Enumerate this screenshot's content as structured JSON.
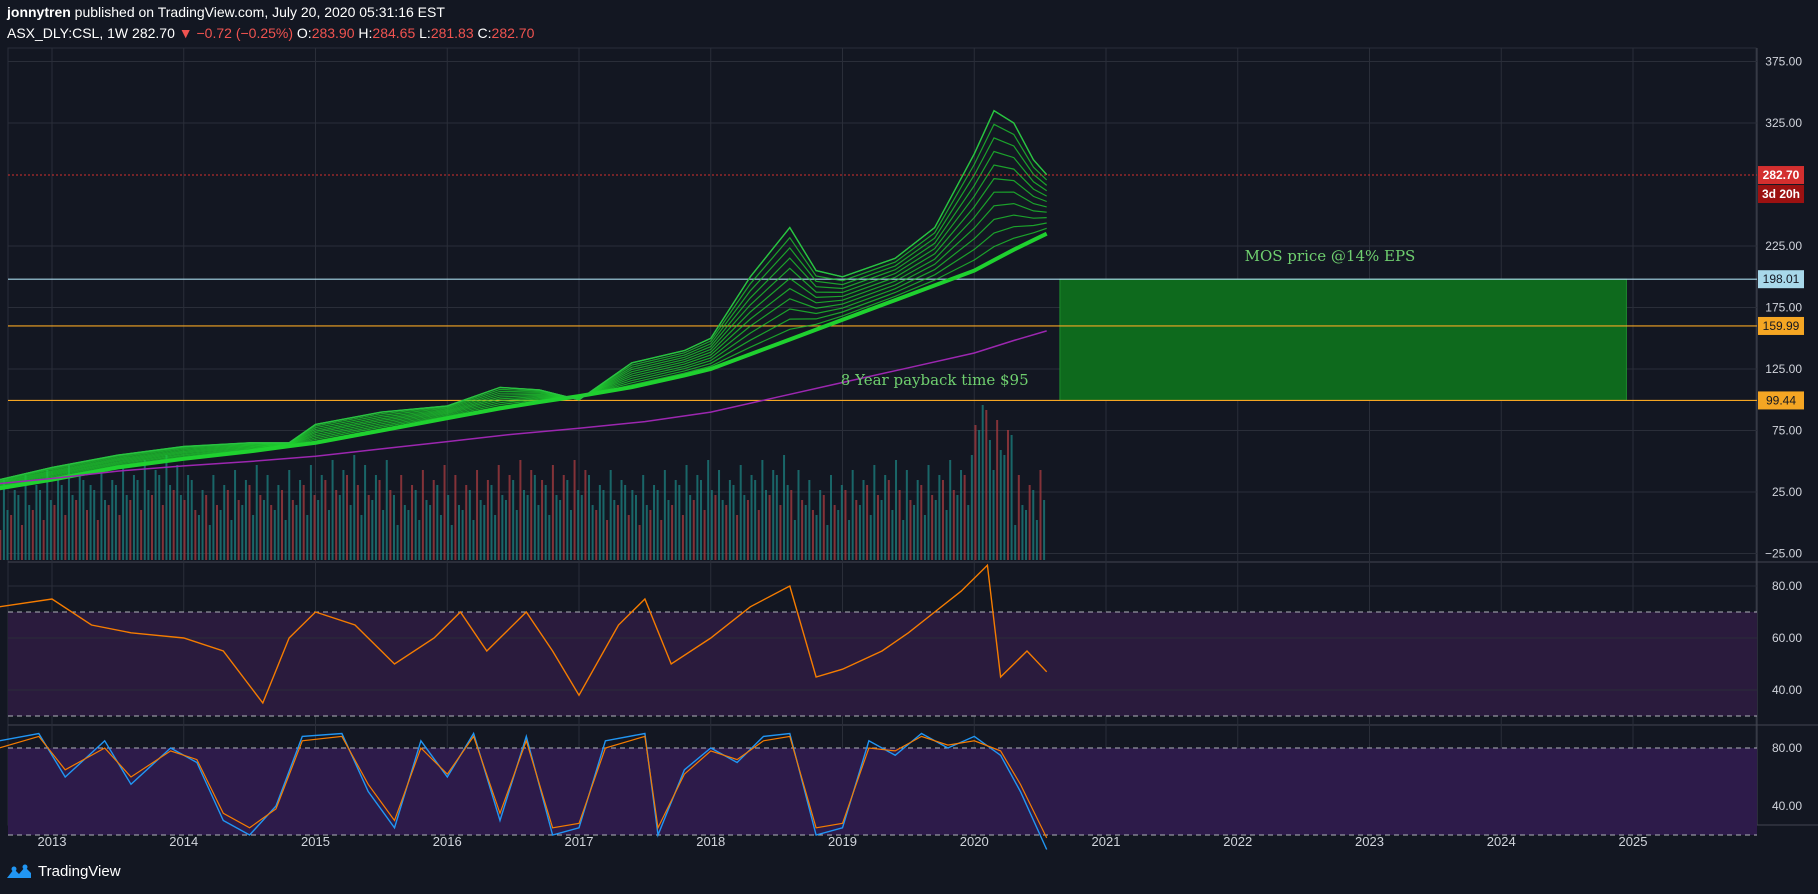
{
  "header": {
    "author": "jonnytren",
    "published_text": "published on TradingView.com, July 20, 2020 05:31:16 EST",
    "symbol": "ASX_DLY:CSL, 1W",
    "last": "282.70",
    "change": "−0.72 (−0.25%)",
    "o_label": "O:",
    "o_val": "283.90",
    "h_label": "H:",
    "h_val": "284.65",
    "l_label": "L:",
    "l_val": "281.83",
    "c_label": "C:",
    "c_val": "282.70"
  },
  "footer": {
    "brand": "TradingView"
  },
  "colors": {
    "background": "#131722",
    "grid": "#2a2e39",
    "price_up": "#26c541",
    "ribbon": "#1fd12f",
    "ma200": "#9c27b0",
    "rsi_line": "#f57c00",
    "stoch_k": "#2196f3",
    "stoch_d": "#f57c00",
    "oscillator_band": "#2a1b3d",
    "zone_fill": "#0e6a1d",
    "level_blue": "#a8d8ea",
    "level_orange": "#f5a623",
    "last_price": "#d32f2f"
  },
  "chart_data": [
    {
      "type": "line",
      "panel": "price",
      "x_ticks": [
        "2013",
        "2014",
        "2015",
        "2016",
        "2017",
        "2018",
        "2019",
        "2020",
        "2021",
        "2022",
        "2023",
        "2024",
        "2025"
      ],
      "y_ticks": [
        "375.00",
        "325.00",
        "225.00",
        "175.00",
        "125.00",
        "75.00",
        "25.00",
        "−25.00"
      ],
      "ylim": [
        -25,
        390
      ],
      "series": [
        {
          "name": "",
          "points": [
            [
              2012.6,
              35
            ],
            [
              2013.0,
              45
            ],
            [
              2013.5,
              55
            ],
            [
              2014.0,
              62
            ],
            [
              2014.5,
              65
            ],
            [
              2014.8,
              65
            ],
            [
              2015.0,
              80
            ],
            [
              2015.5,
              90
            ],
            [
              2016.0,
              95
            ],
            [
              2016.4,
              110
            ],
            [
              2016.7,
              108
            ],
            [
              2017.0,
              100
            ],
            [
              2017.4,
              130
            ],
            [
              2017.8,
              140
            ],
            [
              2018.0,
              150
            ],
            [
              2018.3,
              200
            ],
            [
              2018.6,
              240
            ],
            [
              2018.8,
              205
            ],
            [
              2019.0,
              200
            ],
            [
              2019.4,
              215
            ],
            [
              2019.7,
              240
            ],
            [
              2020.0,
              300
            ],
            [
              2020.15,
              335
            ],
            [
              2020.3,
              325
            ],
            [
              2020.45,
              295
            ],
            [
              2020.55,
              283
            ]
          ]
        },
        {
          "name": "",
          "points": [
            [
              2012.6,
              28
            ],
            [
              2013.0,
              35
            ],
            [
              2013.5,
              45
            ],
            [
              2014.0,
              52
            ],
            [
              2014.5,
              58
            ],
            [
              2015.0,
              65
            ],
            [
              2015.5,
              75
            ],
            [
              2016.0,
              85
            ],
            [
              2016.5,
              95
            ],
            [
              2017.0,
              103
            ],
            [
              2017.5,
              112
            ],
            [
              2018.0,
              125
            ],
            [
              2018.5,
              145
            ],
            [
              2019.0,
              165
            ],
            [
              2019.5,
              185
            ],
            [
              2020.0,
              205
            ],
            [
              2020.3,
              222
            ],
            [
              2020.55,
              235
            ]
          ]
        }
      ],
      "levels": [
        {
          "label": "198.01",
          "value": 198.01,
          "color": "#a8d8ea"
        },
        {
          "label": "159.99",
          "value": 159.99,
          "color": "#f5a623"
        },
        {
          "label": "99.44",
          "value": 99.44,
          "color": "#f5a623"
        }
      ],
      "last_price": {
        "label": "282.70",
        "value": 282.7,
        "countdown": "3d 20h"
      },
      "zone": {
        "x_start": 2020.65,
        "x_end": 2024.95,
        "y_low": 99.44,
        "y_high": 198.01
      },
      "annotations": [
        {
          "text": "MOS price @14% EPS",
          "x": 2022.7,
          "y": 213
        },
        {
          "text": "8 Year payback time $95",
          "x": 2019.7,
          "y": 112
        }
      ]
    },
    {
      "type": "line",
      "panel": "rsi",
      "y_ticks": [
        "80.00",
        "60.00",
        "40.00"
      ],
      "ylim": [
        25,
        90
      ],
      "bands": [
        70,
        30
      ],
      "series": [
        {
          "name": "",
          "points": [
            [
              2012.6,
              72
            ],
            [
              2013.0,
              75
            ],
            [
              2013.3,
              65
            ],
            [
              2013.6,
              62
            ],
            [
              2014.0,
              60
            ],
            [
              2014.3,
              55
            ],
            [
              2014.6,
              35
            ],
            [
              2014.8,
              60
            ],
            [
              2015.0,
              70
            ],
            [
              2015.3,
              65
            ],
            [
              2015.6,
              50
            ],
            [
              2015.9,
              60
            ],
            [
              2016.1,
              70
            ],
            [
              2016.3,
              55
            ],
            [
              2016.6,
              70
            ],
            [
              2016.8,
              55
            ],
            [
              2017.0,
              38
            ],
            [
              2017.3,
              65
            ],
            [
              2017.5,
              75
            ],
            [
              2017.7,
              50
            ],
            [
              2018.0,
              60
            ],
            [
              2018.3,
              72
            ],
            [
              2018.6,
              80
            ],
            [
              2018.8,
              45
            ],
            [
              2019.0,
              48
            ],
            [
              2019.3,
              55
            ],
            [
              2019.5,
              62
            ],
            [
              2019.7,
              70
            ],
            [
              2019.9,
              78
            ],
            [
              2020.1,
              88
            ],
            [
              2020.2,
              45
            ],
            [
              2020.4,
              55
            ],
            [
              2020.55,
              47
            ]
          ]
        }
      ]
    },
    {
      "type": "line",
      "panel": "stoch",
      "y_ticks": [
        "80.00",
        "40.00"
      ],
      "ylim": [
        0,
        100
      ],
      "bands": [
        80,
        20
      ],
      "series": [
        {
          "name": "",
          "points": [
            [
              2012.6,
              85
            ],
            [
              2012.9,
              90
            ],
            [
              2013.1,
              60
            ],
            [
              2013.4,
              85
            ],
            [
              2013.6,
              55
            ],
            [
              2013.9,
              80
            ],
            [
              2014.1,
              70
            ],
            [
              2014.3,
              30
            ],
            [
              2014.5,
              20
            ],
            [
              2014.7,
              40
            ],
            [
              2014.9,
              88
            ],
            [
              2015.2,
              90
            ],
            [
              2015.4,
              50
            ],
            [
              2015.6,
              25
            ],
            [
              2015.8,
              85
            ],
            [
              2016.0,
              60
            ],
            [
              2016.2,
              90
            ],
            [
              2016.4,
              30
            ],
            [
              2016.6,
              88
            ],
            [
              2016.8,
              20
            ],
            [
              2017.0,
              25
            ],
            [
              2017.2,
              85
            ],
            [
              2017.5,
              90
            ],
            [
              2017.6,
              20
            ],
            [
              2017.8,
              65
            ],
            [
              2018.0,
              80
            ],
            [
              2018.2,
              70
            ],
            [
              2018.4,
              88
            ],
            [
              2018.6,
              90
            ],
            [
              2018.8,
              20
            ],
            [
              2019.0,
              25
            ],
            [
              2019.2,
              85
            ],
            [
              2019.4,
              75
            ],
            [
              2019.6,
              90
            ],
            [
              2019.8,
              80
            ],
            [
              2020.0,
              88
            ],
            [
              2020.2,
              75
            ],
            [
              2020.35,
              50
            ],
            [
              2020.55,
              10
            ]
          ]
        },
        {
          "name": "",
          "points": [
            [
              2012.6,
              80
            ],
            [
              2012.9,
              88
            ],
            [
              2013.1,
              65
            ],
            [
              2013.4,
              80
            ],
            [
              2013.6,
              60
            ],
            [
              2013.9,
              78
            ],
            [
              2014.1,
              72
            ],
            [
              2014.3,
              35
            ],
            [
              2014.5,
              25
            ],
            [
              2014.7,
              38
            ],
            [
              2014.9,
              85
            ],
            [
              2015.2,
              88
            ],
            [
              2015.4,
              55
            ],
            [
              2015.6,
              30
            ],
            [
              2015.8,
              80
            ],
            [
              2016.0,
              62
            ],
            [
              2016.2,
              88
            ],
            [
              2016.4,
              35
            ],
            [
              2016.6,
              85
            ],
            [
              2016.8,
              25
            ],
            [
              2017.0,
              28
            ],
            [
              2017.2,
              80
            ],
            [
              2017.5,
              88
            ],
            [
              2017.6,
              25
            ],
            [
              2017.8,
              62
            ],
            [
              2018.0,
              78
            ],
            [
              2018.2,
              72
            ],
            [
              2018.4,
              85
            ],
            [
              2018.6,
              88
            ],
            [
              2018.8,
              25
            ],
            [
              2019.0,
              28
            ],
            [
              2019.2,
              80
            ],
            [
              2019.4,
              78
            ],
            [
              2019.6,
              88
            ],
            [
              2019.8,
              82
            ],
            [
              2020.0,
              85
            ],
            [
              2020.2,
              78
            ],
            [
              2020.35,
              55
            ],
            [
              2020.55,
              18
            ]
          ]
        }
      ]
    }
  ]
}
